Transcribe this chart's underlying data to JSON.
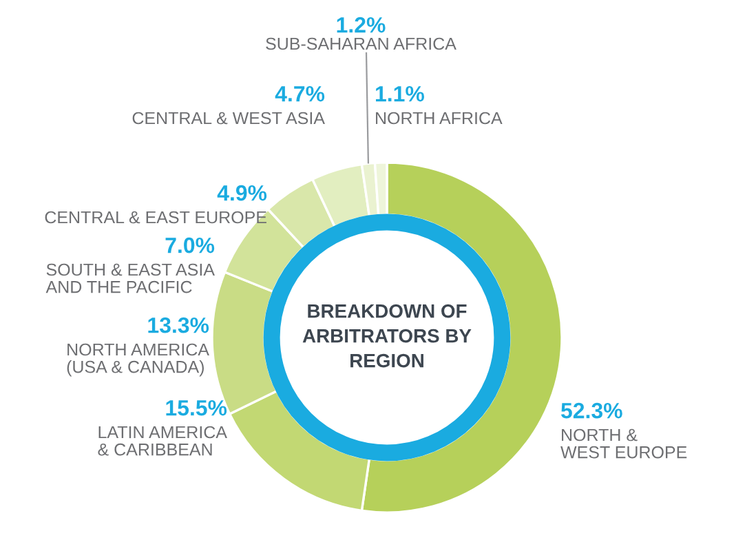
{
  "chart_data": {
    "type": "donut",
    "title": "BREAKDOWN OF\nARBITRATORS BY\nREGION",
    "categories": [
      "NORTH &\nWEST EUROPE",
      "LATIN AMERICA\n& CARIBBEAN",
      "NORTH AMERICA\n(USA & CANADA)",
      "SOUTH & EAST ASIA\nAND THE PACIFIC",
      "CENTRAL & EAST EUROPE",
      "CENTRAL & WEST ASIA",
      "SUB-SAHARAN AFRICA",
      "NORTH AFRICA"
    ],
    "values": [
      52.3,
      15.5,
      13.3,
      7.0,
      4.9,
      4.7,
      1.2,
      1.1
    ],
    "value_labels": [
      "52.3%",
      "15.5%",
      "13.3%",
      "7.0%",
      "4.9%",
      "4.7%",
      "1.2%",
      "1.1%"
    ],
    "colors": [
      "#b6d05a",
      "#c2d873",
      "#c9dc85",
      "#d2e39a",
      "#d9e7aa",
      "#e2eec0",
      "#eaf2d0",
      "#eef5da"
    ]
  }
}
